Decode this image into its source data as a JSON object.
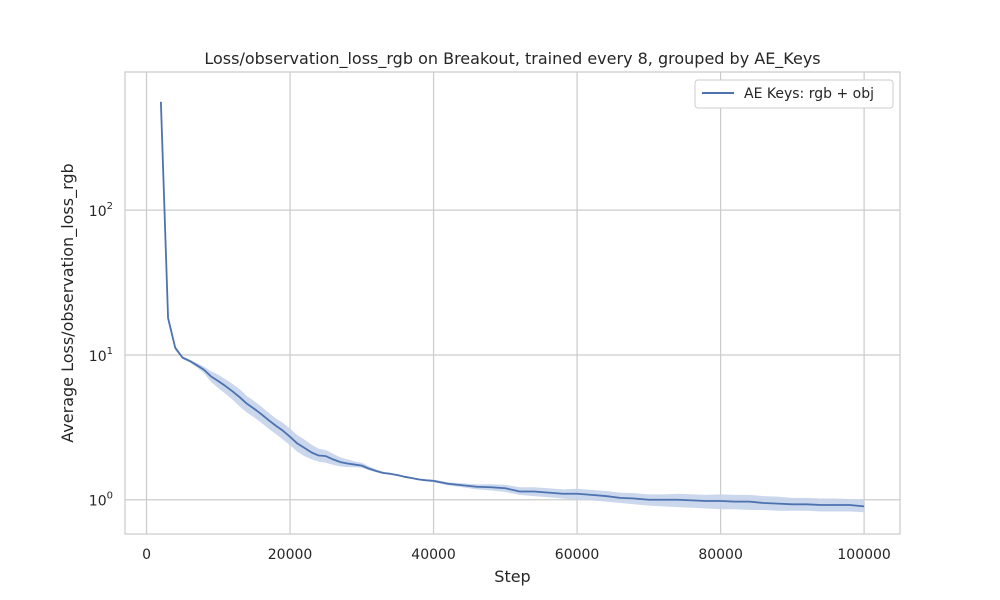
{
  "chart_data": {
    "type": "line",
    "title": "Loss/observation_loss_rgb on Breakout, trained every 8, grouped by AE_Keys",
    "xlabel": "Step",
    "ylabel": "Average Loss/observation_loss_rgb",
    "xlim": [
      -3000,
      105000
    ],
    "ylim": [
      0.58,
      900
    ],
    "yscale": "log",
    "grid": true,
    "legend_position": "top-right",
    "x_ticks": [
      "0",
      "20000",
      "40000",
      "60000",
      "80000",
      "100000"
    ],
    "x_tick_values": [
      0,
      20000,
      40000,
      60000,
      80000,
      100000
    ],
    "y_ticks": [
      {
        "base": "10",
        "exp": "0",
        "value": 1
      },
      {
        "base": "10",
        "exp": "1",
        "value": 10
      },
      {
        "base": "10",
        "exp": "2",
        "value": 100
      }
    ],
    "series": [
      {
        "name": "AE Keys: rgb + obj",
        "color": "#4c72b0",
        "band_color": "#c5d3ea",
        "x": [
          2000,
          3000,
          4000,
          5000,
          6000,
          7000,
          8000,
          9000,
          10000,
          11000,
          12000,
          13000,
          14000,
          15000,
          16000,
          17000,
          18000,
          19000,
          20000,
          21000,
          22000,
          23000,
          24000,
          25000,
          26000,
          27000,
          28000,
          29000,
          30000,
          31000,
          32000,
          33000,
          34000,
          35000,
          36000,
          37000,
          38000,
          39000,
          40000,
          42000,
          44000,
          46000,
          48000,
          50000,
          52000,
          54000,
          56000,
          58000,
          60000,
          62000,
          64000,
          66000,
          68000,
          70000,
          72000,
          74000,
          76000,
          78000,
          80000,
          82000,
          84000,
          86000,
          88000,
          90000,
          92000,
          94000,
          96000,
          98000,
          100000
        ],
        "y": [
          560,
          18,
          11.2,
          9.6,
          9.1,
          8.5,
          7.9,
          7.1,
          6.6,
          6.1,
          5.6,
          5.1,
          4.6,
          4.25,
          3.9,
          3.55,
          3.25,
          3.0,
          2.72,
          2.45,
          2.28,
          2.12,
          2.02,
          2.0,
          1.9,
          1.82,
          1.78,
          1.75,
          1.72,
          1.64,
          1.58,
          1.53,
          1.51,
          1.48,
          1.44,
          1.41,
          1.38,
          1.36,
          1.35,
          1.29,
          1.26,
          1.23,
          1.22,
          1.2,
          1.14,
          1.14,
          1.12,
          1.1,
          1.1,
          1.08,
          1.06,
          1.03,
          1.02,
          1.0,
          1.0,
          1.0,
          0.99,
          0.98,
          0.98,
          0.97,
          0.97,
          0.95,
          0.94,
          0.93,
          0.93,
          0.92,
          0.92,
          0.92,
          0.9
        ],
        "lower": [
          540,
          17,
          10.8,
          9.4,
          8.9,
          8.2,
          7.5,
          6.5,
          5.9,
          5.4,
          4.9,
          4.4,
          4.0,
          3.7,
          3.4,
          3.1,
          2.85,
          2.6,
          2.38,
          2.15,
          2.0,
          1.9,
          1.83,
          1.8,
          1.74,
          1.7,
          1.68,
          1.68,
          1.66,
          1.6,
          1.55,
          1.51,
          1.49,
          1.46,
          1.42,
          1.39,
          1.36,
          1.34,
          1.32,
          1.26,
          1.22,
          1.18,
          1.16,
          1.13,
          1.08,
          1.06,
          1.04,
          1.02,
          1.0,
          0.99,
          0.97,
          0.95,
          0.93,
          0.91,
          0.9,
          0.89,
          0.88,
          0.87,
          0.86,
          0.86,
          0.85,
          0.85,
          0.84,
          0.84,
          0.84,
          0.83,
          0.83,
          0.83,
          0.82
        ],
        "upper": [
          580,
          19,
          11.6,
          9.8,
          9.3,
          8.8,
          8.3,
          7.7,
          7.3,
          6.8,
          6.3,
          5.8,
          5.2,
          4.8,
          4.4,
          4.0,
          3.65,
          3.4,
          3.1,
          2.8,
          2.6,
          2.4,
          2.25,
          2.2,
          2.08,
          1.96,
          1.9,
          1.84,
          1.8,
          1.7,
          1.62,
          1.56,
          1.53,
          1.5,
          1.46,
          1.43,
          1.4,
          1.39,
          1.38,
          1.32,
          1.3,
          1.28,
          1.28,
          1.27,
          1.22,
          1.22,
          1.2,
          1.18,
          1.19,
          1.17,
          1.15,
          1.12,
          1.11,
          1.09,
          1.09,
          1.1,
          1.09,
          1.08,
          1.09,
          1.08,
          1.08,
          1.06,
          1.05,
          1.03,
          1.03,
          1.02,
          1.02,
          1.01,
          1.0
        ]
      }
    ]
  }
}
